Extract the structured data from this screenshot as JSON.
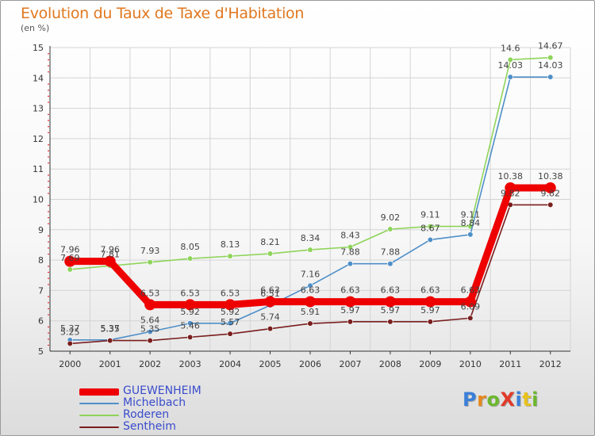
{
  "title": "Evolution du Taux de Taxe d'Habitation",
  "subtitle": "(en %)",
  "logo": {
    "text": "ProXiti",
    "letters": [
      {
        "ch": "P",
        "color": "#3a7fd8"
      },
      {
        "ch": "r",
        "color": "#e8881c"
      },
      {
        "ch": "o",
        "color": "#6cb82e"
      },
      {
        "ch": "X",
        "color": "#e03a2a"
      },
      {
        "ch": "i",
        "color": "#3a7fd8"
      },
      {
        "ch": "t",
        "color": "#e8c21c"
      },
      {
        "ch": "i",
        "color": "#6cb82e"
      }
    ]
  },
  "chart_data": {
    "type": "line",
    "title": "Evolution du Taux de Taxe d'Habitation",
    "subtitle": "(en %)",
    "xlabel": "",
    "ylabel": "",
    "x": [
      "2000",
      "2001",
      "2002",
      "2003",
      "2004",
      "2005",
      "2006",
      "2007",
      "2008",
      "2009",
      "2010",
      "2011",
      "2012"
    ],
    "ylim": [
      5,
      15
    ],
    "yticks": [
      "5",
      "6",
      "7",
      "8",
      "9",
      "10",
      "11",
      "12",
      "13",
      "14",
      "15"
    ],
    "grid": true,
    "legend_position": "bottom-left",
    "series": [
      {
        "name": "GUEWENHEIM",
        "color": "#ee0000",
        "values": [
          7.96,
          7.96,
          6.53,
          6.53,
          6.53,
          6.63,
          6.63,
          6.63,
          6.63,
          6.63,
          6.63,
          10.38,
          10.38
        ],
        "labels": [
          "7.96",
          "7.96",
          "6.53",
          "6.53",
          "6.53",
          "6.63",
          "6.63",
          "6.63",
          "6.63",
          "6.63",
          "6.63",
          "10.38",
          "10.38"
        ]
      },
      {
        "name": "Michelbach",
        "color": "#4f8fc8",
        "values": [
          5.37,
          5.37,
          5.64,
          5.92,
          5.92,
          6.51,
          7.16,
          7.88,
          7.88,
          8.67,
          8.84,
          14.03,
          14.03
        ],
        "labels": [
          "5.37",
          "5.37",
          "5.64",
          "5.92",
          "5.92",
          "6.51",
          "7.16",
          "7.88",
          "7.88",
          "8.67",
          "8.84",
          "14.03",
          "14.03"
        ]
      },
      {
        "name": "Roderen",
        "color": "#8ed45a",
        "values": [
          7.69,
          7.81,
          7.93,
          8.05,
          8.13,
          8.21,
          8.34,
          8.43,
          9.02,
          9.11,
          9.11,
          14.6,
          14.67
        ],
        "labels": [
          "7.69",
          "7.81",
          "7.93",
          "8.05",
          "8.13",
          "8.21",
          "8.34",
          "8.43",
          "9.02",
          "9.11",
          "9.11",
          "14.6",
          "14.67"
        ]
      },
      {
        "name": "Sentheim",
        "color": "#7a1e1e",
        "values": [
          5.25,
          5.35,
          5.35,
          5.46,
          5.57,
          5.74,
          5.91,
          5.97,
          5.97,
          5.97,
          6.09,
          9.82,
          9.82
        ],
        "labels": [
          "5.25",
          "5.35",
          "5.35",
          "5.46",
          "5.57",
          "5.74",
          "5.91",
          "5.97",
          "5.97",
          "5.97",
          "6.09",
          "9.82",
          "9.82"
        ]
      }
    ]
  }
}
